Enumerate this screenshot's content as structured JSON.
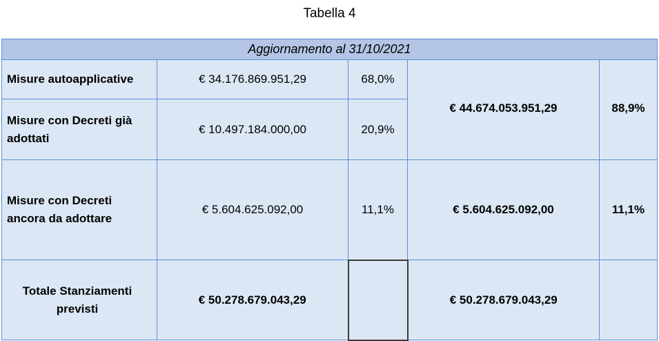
{
  "caption": "Tabella 4",
  "table": {
    "header": "Aggiornamento al 31/10/2021",
    "rows": [
      {
        "label": "Misure autoapplicative",
        "amount": "€ 34.176.869.951,29",
        "percent": "68,0%"
      },
      {
        "label": "Misure con Decreti già adottati",
        "amount": "€ 10.497.184.000,00",
        "percent": "20,9%"
      },
      {
        "label": "Misure con Decreti ancora da adottare",
        "amount": "€ 5.604.625.092,00",
        "percent": "11,1%"
      }
    ],
    "group_adopted": {
      "amount": "€ 44.674.053.951,29",
      "percent": "88,9%"
    },
    "group_pending": {
      "amount": "€ 5.604.625.092,00",
      "percent": "11,1%"
    },
    "total": {
      "label": "Totale Stanziamenti previsti",
      "amount": "€ 50.278.679.043,29",
      "group_amount": "€ 50.278.679.043,29"
    }
  },
  "colors": {
    "border": "#5b8fd4",
    "cell_light": "#dce7f5",
    "cell_header": "#b4c5e6"
  }
}
